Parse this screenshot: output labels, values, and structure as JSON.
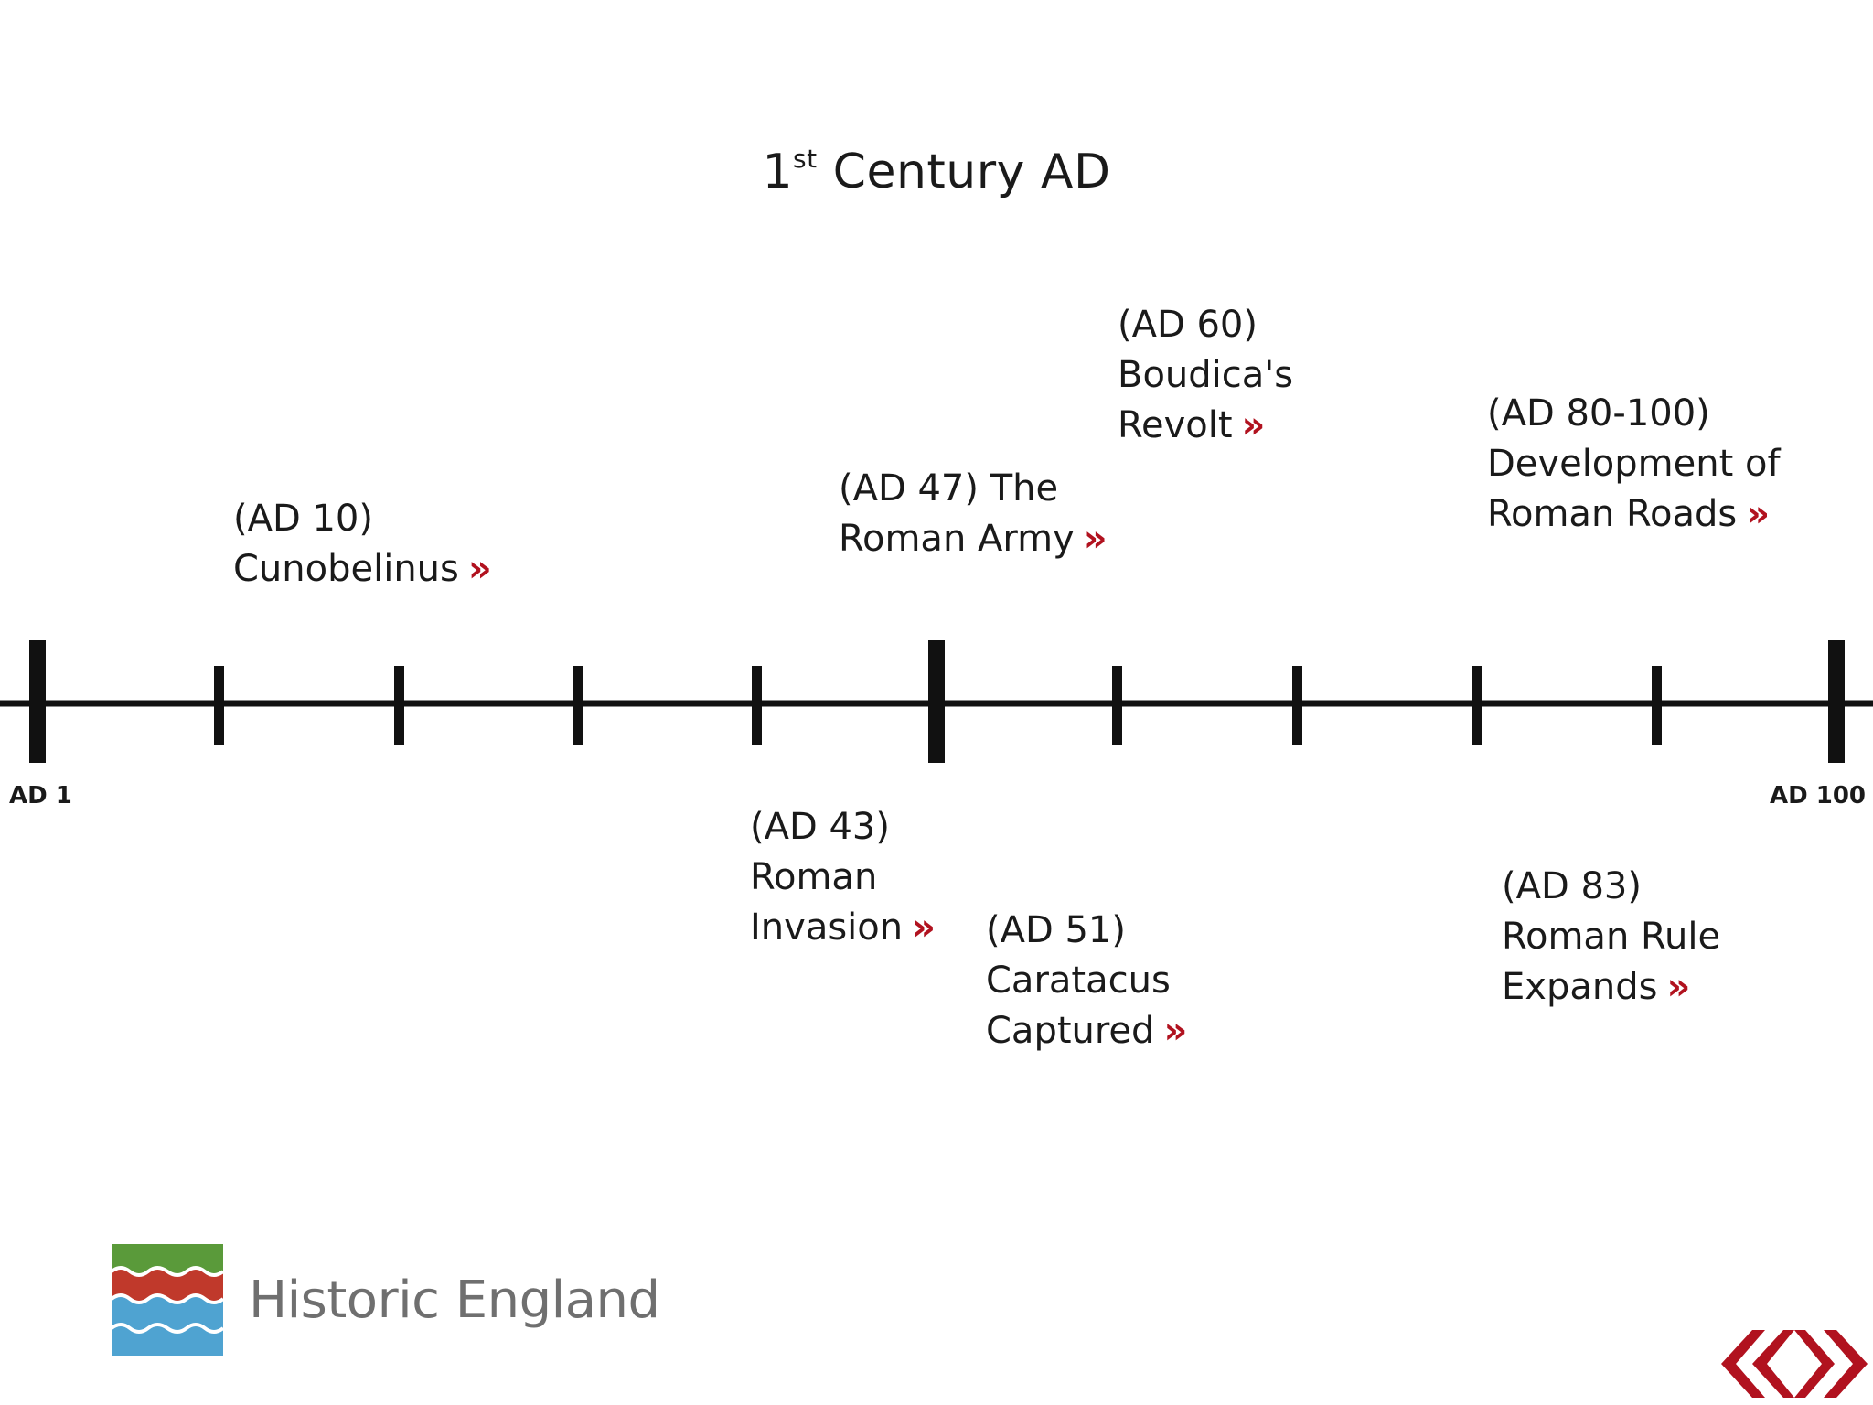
{
  "title": {
    "main": "1",
    "sup": "st",
    "rest": " Century AD"
  },
  "axis": {
    "start_label": "AD 1",
    "end_label": "AD 100"
  },
  "events": [
    {
      "lines": [
        "(AD 10)",
        "Cunobelinus"
      ],
      "arrow": "»"
    },
    {
      "lines": [
        "(AD 43)",
        "Roman",
        "Invasion"
      ],
      "arrow": "»"
    },
    {
      "lines": [
        "(AD 47) The",
        "Roman Army"
      ],
      "arrow": "»"
    },
    {
      "lines": [
        "(AD 51)",
        "Caratacus",
        "Captured"
      ],
      "arrow": "»"
    },
    {
      "lines": [
        "(AD 60)",
        "Boudica's",
        "Revolt"
      ],
      "arrow": "»"
    },
    {
      "lines": [
        "(AD 80-100)",
        "Development of",
        "Roman Roads"
      ],
      "arrow": "»"
    },
    {
      "lines": [
        "(AD 83)",
        "Roman Rule",
        "Expands"
      ],
      "arrow": "»"
    }
  ],
  "logo": {
    "text": "Historic England",
    "icon": "historic-england-wave-icon"
  },
  "nav": {
    "prev_icon": "chevron-left-icon",
    "next_icon": "chevron-right-icon"
  },
  "colors": {
    "text": "#1a1a1a",
    "accent_red": "#b1121f",
    "logo_green": "#5a9a3a",
    "logo_red": "#c0392b",
    "logo_blue": "#4fa3d1",
    "logo_text": "#6f6f6f"
  }
}
